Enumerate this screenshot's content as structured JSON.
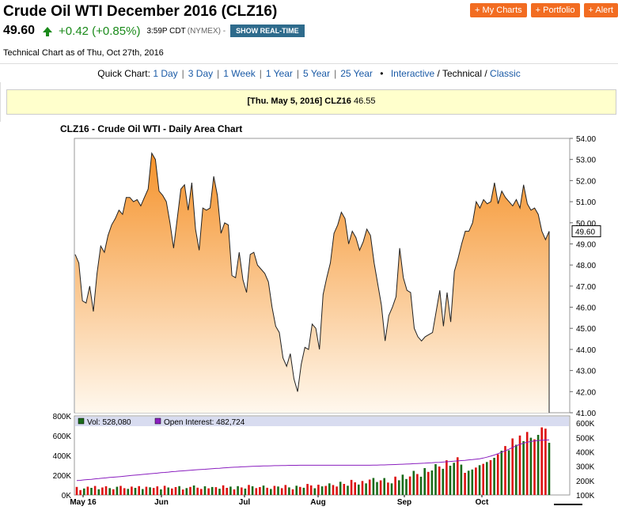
{
  "header": {
    "title": "Crude Oil WTI December 2016 (CLZ16)",
    "last": "49.60",
    "change": "+0.42 (+0.85%)",
    "time": "3:59P CDT",
    "exchange": "(NYMEX) -",
    "realtime_button": "SHOW REAL-TIME",
    "buttons": [
      "+ My Charts",
      "+ Portfolio",
      "+ Alert"
    ],
    "as_of": "Technical Chart as of Thu, Oct 27th, 2016"
  },
  "quick_chart": {
    "label": "Quick Chart:",
    "ranges": [
      "1 Day",
      "3 Day",
      "1 Week",
      "1 Year",
      "5 Year",
      "25 Year"
    ],
    "bullet": "•",
    "modes": [
      "Interactive",
      "Technical",
      "Classic"
    ],
    "current_mode": "Technical"
  },
  "tooltip": {
    "date": "[Thu. May 5, 2016]",
    "symbol": "CLZ16",
    "value": "46.55"
  },
  "colors": {
    "area_top": "#f5922a",
    "area_bottom": "#fff8ee",
    "vol_up": "#1a6b1a",
    "vol_down": "#dd1111",
    "open_interest": "#8a1fbf",
    "legend_bg": "#d8dcf0",
    "accent": "#f26c21"
  },
  "chart_data": [
    {
      "type": "area",
      "title": "CLZ16 - Crude Oil WTI - Daily Area Chart",
      "ylim": [
        41,
        54
      ],
      "y_ticks": [
        "54.00",
        "53.00",
        "52.00",
        "51.00",
        "50.00",
        "49.00",
        "48.00",
        "47.00",
        "46.00",
        "45.00",
        "44.00",
        "43.00",
        "42.00",
        "41.00"
      ],
      "last_label": "49.60",
      "x_labels": [
        "May 16",
        "Jun",
        "Jul",
        "Aug",
        "Sep",
        "Oct"
      ],
      "values": [
        48.5,
        48.1,
        46.3,
        46.2,
        47.0,
        45.8,
        47.6,
        48.9,
        48.6,
        49.4,
        49.9,
        50.2,
        50.6,
        50.4,
        51.2,
        51.2,
        51.0,
        51.1,
        50.8,
        51.2,
        51.6,
        53.3,
        53.0,
        51.5,
        51.3,
        51.0,
        50.0,
        48.8,
        50.2,
        51.6,
        51.8,
        50.6,
        51.9,
        49.7,
        48.7,
        50.7,
        50.6,
        50.7,
        52.2,
        51.3,
        49.5,
        50.0,
        49.9,
        47.5,
        47.4,
        48.6,
        47.3,
        46.7,
        48.5,
        48.6,
        48.0,
        47.8,
        47.6,
        47.2,
        46.0,
        45.1,
        44.8,
        43.6,
        43.2,
        43.8,
        42.6,
        42.0,
        43.3,
        44.1,
        44.0,
        45.2,
        45.0,
        44.0,
        46.6,
        47.4,
        48.1,
        49.5,
        49.9,
        50.5,
        50.2,
        49.0,
        49.6,
        49.3,
        48.7,
        49.1,
        49.7,
        49.4,
        48.1,
        47.1,
        46.1,
        44.4,
        45.6,
        46.0,
        46.5,
        48.8,
        47.4,
        46.8,
        46.7,
        45.0,
        44.6,
        44.4,
        44.6,
        44.7,
        44.8,
        45.8,
        46.8,
        45.1,
        46.7,
        45.3,
        47.7,
        48.3,
        49.0,
        49.6,
        49.6,
        50.0,
        51.0,
        50.7,
        51.1,
        50.9,
        51.0,
        51.9,
        50.9,
        51.5,
        51.2,
        51.0,
        50.8,
        51.1,
        50.7,
        51.8,
        50.9,
        50.6,
        50.7,
        50.4,
        49.6,
        49.2,
        49.6
      ]
    },
    {
      "type": "bar",
      "legend": {
        "volume": "Vol: 528,080",
        "open_interest": "Open Interest: 482,724"
      },
      "ylim_volume": [
        0,
        800000
      ],
      "ylim_open_interest": [
        100000,
        650000
      ],
      "y_ticks_volume": [
        "800K",
        "600K",
        "400K",
        "200K",
        "0K"
      ],
      "y_ticks_open_interest": [
        "600K",
        "500K",
        "400K",
        "300K",
        "200K",
        "100K"
      ],
      "volume": [
        82000,
        50000,
        66000,
        84000,
        72000,
        91000,
        58000,
        76000,
        88000,
        70000,
        58000,
        83000,
        92000,
        69000,
        62000,
        85000,
        72000,
        90000,
        60000,
        83000,
        78000,
        71000,
        87000,
        57000,
        93000,
        76000,
        66000,
        80000,
        90000,
        55000,
        70000,
        82000,
        96000,
        74000,
        61000,
        88000,
        67000,
        81000,
        79000,
        63000,
        98000,
        72000,
        85000,
        57000,
        90000,
        76000,
        65000,
        102000,
        88000,
        70000,
        80000,
        95000,
        73000,
        61000,
        92000,
        86000,
        69000,
        101000,
        77000,
        58000,
        94000,
        82000,
        73000,
        112000,
        97000,
        68000,
        104000,
        87000,
        92000,
        118000,
        101000,
        86000,
        134000,
        112000,
        94000,
        153000,
        128000,
        106000,
        142000,
        118000,
        156000,
        172000,
        131000,
        148000,
        171000,
        126000,
        118000,
        186000,
        149000,
        206000,
        162000,
        187000,
        244000,
        212000,
        185000,
        272000,
        234000,
        248000,
        312000,
        288000,
        265000,
        351000,
        296000,
        326000,
        382000,
        307000,
        224000,
        246000,
        258000,
        278000,
        302000,
        315000,
        334000,
        352000,
        376000,
        412000,
        448000,
        495000,
        452000,
        572000,
        508000,
        602000,
        545000,
        638000,
        579000,
        563000,
        608000,
        684000,
        671000,
        528080
      ],
      "volume_colors": [
        "d",
        "d",
        "u",
        "d",
        "u",
        "d",
        "u",
        "d",
        "d",
        "u",
        "d",
        "u",
        "d",
        "d",
        "u",
        "d",
        "u",
        "d",
        "u",
        "d",
        "u",
        "d",
        "d",
        "u",
        "d",
        "u",
        "d",
        "d",
        "u",
        "d",
        "u",
        "d",
        "u",
        "d",
        "d",
        "u",
        "d",
        "u",
        "d",
        "u",
        "d",
        "d",
        "u",
        "d",
        "u",
        "d",
        "u",
        "d",
        "u",
        "d",
        "d",
        "u",
        "d",
        "u",
        "d",
        "u",
        "d",
        "d",
        "u",
        "d",
        "u",
        "d",
        "u",
        "d",
        "d",
        "u",
        "d",
        "u",
        "d",
        "u",
        "d",
        "d",
        "u",
        "d",
        "u",
        "d",
        "d",
        "u",
        "d",
        "u",
        "d",
        "u",
        "u",
        "d",
        "u",
        "d",
        "u",
        "d",
        "u",
        "u",
        "u",
        "d",
        "u",
        "d",
        "u",
        "u",
        "d",
        "u",
        "u",
        "d",
        "u",
        "d",
        "u",
        "u",
        "d",
        "u",
        "d",
        "u",
        "u",
        "d",
        "u",
        "d",
        "u",
        "d",
        "u",
        "d",
        "u",
        "d",
        "u",
        "d",
        "u",
        "d",
        "u",
        "d",
        "u",
        "d",
        "u",
        "d",
        "d",
        "u"
      ],
      "open_interest": [
        200000,
        202000,
        205000,
        207000,
        209000,
        212000,
        214000,
        217000,
        219000,
        222000,
        224000,
        226000,
        228000,
        231000,
        233000,
        236000,
        238000,
        240000,
        243000,
        245000,
        248000,
        250000,
        252000,
        255000,
        257000,
        259000,
        262000,
        264000,
        266000,
        268000,
        270000,
        272000,
        274000,
        276000,
        277000,
        279000,
        281000,
        283000,
        285000,
        286000,
        288000,
        290000,
        292000,
        293000,
        294000,
        296000,
        297000,
        298000,
        299000,
        300000,
        301000,
        302000,
        302000,
        303000,
        304000,
        304000,
        305000,
        305000,
        306000,
        306000,
        306000,
        307000,
        307000,
        307000,
        307000,
        307000,
        307000,
        307000,
        307000,
        307000,
        307000,
        307000,
        307000,
        307000,
        307000,
        307000,
        307000,
        307000,
        307000,
        307000,
        307000,
        308000,
        308000,
        309000,
        309000,
        310000,
        311000,
        312000,
        313000,
        314000,
        315000,
        316000,
        318000,
        319000,
        320000,
        321000,
        323000,
        324000,
        326000,
        327000,
        329000,
        331000,
        333000,
        335000,
        337000,
        339000,
        341000,
        344000,
        346000,
        349000,
        352000,
        357000,
        363000,
        370000,
        378000,
        387000,
        397000,
        407000,
        418000,
        430000,
        442000,
        452000,
        460000,
        467000,
        472000,
        476000,
        479000,
        481000,
        482000,
        482724
      ]
    }
  ]
}
